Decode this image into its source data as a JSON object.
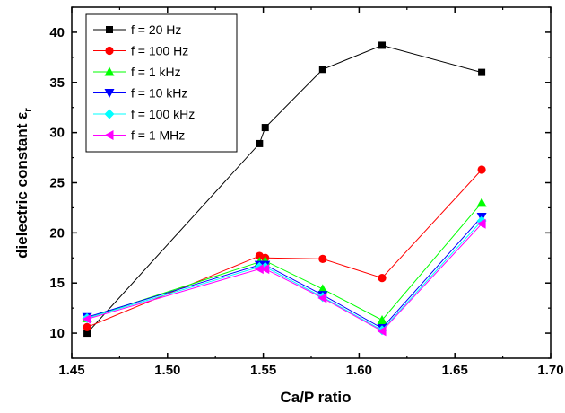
{
  "chart_data": {
    "type": "line",
    "xlabel": "Ca/P ratio",
    "ylabel": "dielectric constant ε",
    "ylabel_subscript": "r",
    "xlim": [
      1.45,
      1.7
    ],
    "ylim": [
      7.5,
      42.5
    ],
    "xticks": [
      1.45,
      1.5,
      1.55,
      1.6,
      1.65,
      1.7
    ],
    "xtick_labels": [
      "1.45",
      "1.50",
      "1.55",
      "1.60",
      "1.65",
      "1.70"
    ],
    "yticks": [
      10,
      15,
      20,
      25,
      30,
      35,
      40
    ],
    "ytick_labels": [
      "10",
      "15",
      "20",
      "25",
      "30",
      "35",
      "40"
    ],
    "grid": false,
    "legend_position": "top-left",
    "series": [
      {
        "name": "f = 20 Hz",
        "color": "#000000",
        "marker": "square",
        "x": [
          1.458,
          1.548,
          1.551,
          1.581,
          1.612,
          1.664
        ],
        "y": [
          10.0,
          28.9,
          30.5,
          36.3,
          38.7,
          36.0
        ]
      },
      {
        "name": "f = 100 Hz",
        "color": "#ff0000",
        "marker": "circle",
        "x": [
          1.458,
          1.548,
          1.551,
          1.581,
          1.612,
          1.664
        ],
        "y": [
          10.6,
          17.7,
          17.5,
          17.4,
          15.5,
          26.3
        ]
      },
      {
        "name": "f = 1 kHz",
        "color": "#00ff00",
        "marker": "triangle-up",
        "x": [
          1.458,
          1.548,
          1.551,
          1.581,
          1.612,
          1.664
        ],
        "y": [
          11.5,
          17.1,
          17.2,
          14.4,
          11.3,
          23.0
        ]
      },
      {
        "name": "f = 10 kHz",
        "color": "#0000ff",
        "marker": "triangle-down",
        "x": [
          1.458,
          1.548,
          1.551,
          1.581,
          1.612,
          1.664
        ],
        "y": [
          11.6,
          16.8,
          16.8,
          13.8,
          10.5,
          21.6
        ]
      },
      {
        "name": "f = 100 kHz",
        "color": "#00ffff",
        "marker": "diamond",
        "x": [
          1.458,
          1.548,
          1.551,
          1.581,
          1.612,
          1.664
        ],
        "y": [
          11.5,
          16.6,
          16.6,
          13.6,
          10.3,
          21.2
        ]
      },
      {
        "name": "f = 1 MHz",
        "color": "#ff00ff",
        "marker": "triangle-left",
        "x": [
          1.458,
          1.548,
          1.551,
          1.581,
          1.612,
          1.664
        ],
        "y": [
          11.4,
          16.4,
          16.4,
          13.5,
          10.2,
          20.9
        ]
      }
    ]
  }
}
